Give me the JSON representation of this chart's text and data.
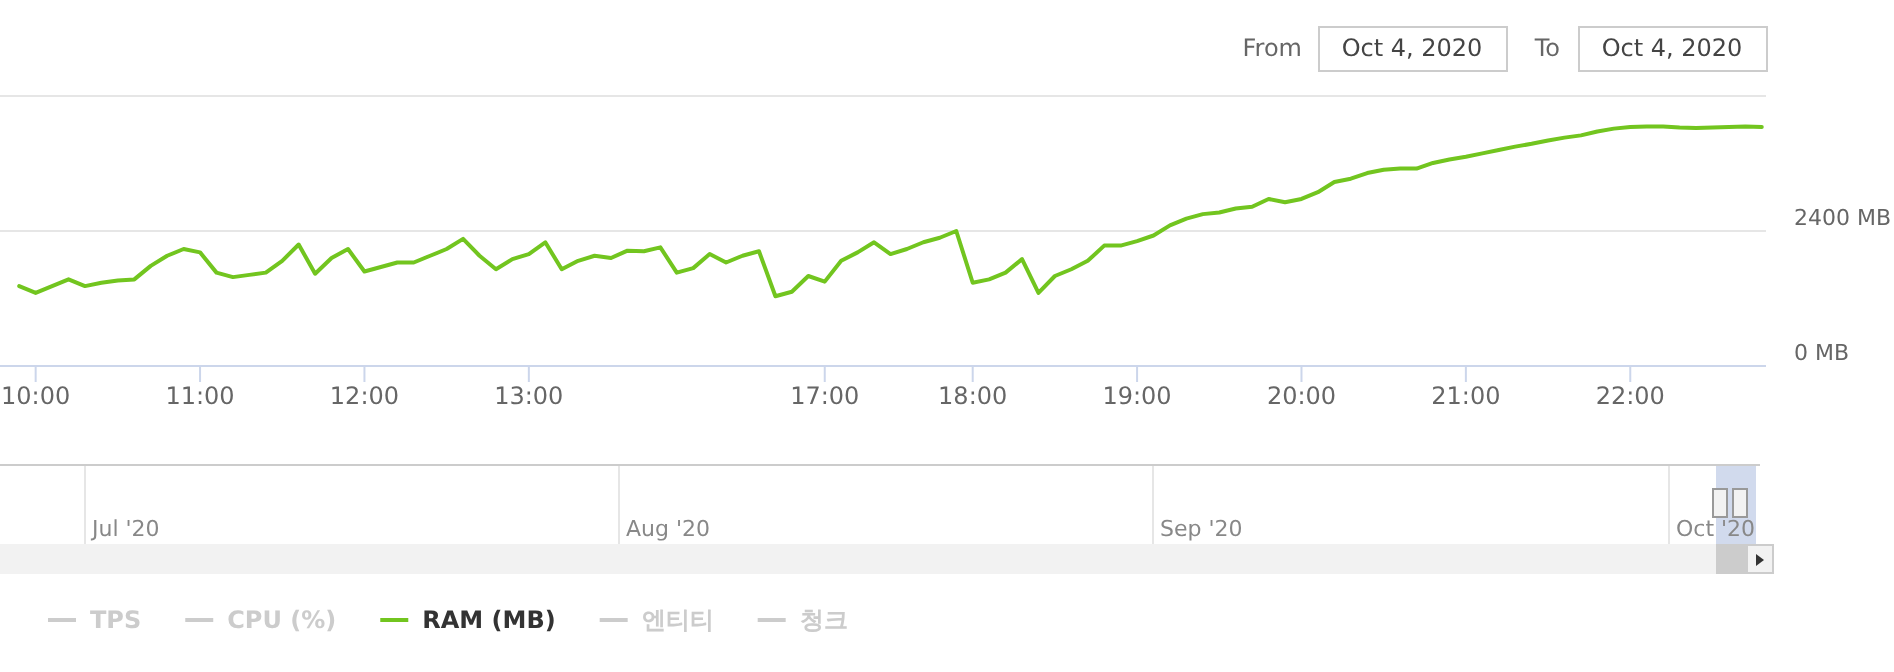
{
  "chart_data": {
    "type": "line",
    "categories": [
      null,
      "10:00",
      null,
      null,
      null,
      null,
      null,
      null,
      null,
      null,
      null,
      "11:00",
      null,
      null,
      null,
      null,
      null,
      null,
      null,
      null,
      null,
      "12:00",
      null,
      null,
      null,
      null,
      null,
      null,
      null,
      null,
      null,
      "13:00",
      null,
      null,
      null,
      null,
      null,
      null,
      null,
      null,
      null,
      null,
      null,
      null,
      null,
      null,
      null,
      null,
      null,
      "17:00",
      null,
      null,
      null,
      null,
      null,
      null,
      null,
      null,
      "18:00",
      null,
      null,
      null,
      null,
      null,
      null,
      null,
      null,
      null,
      "19:00",
      null,
      null,
      null,
      null,
      null,
      null,
      null,
      null,
      null,
      "20:00",
      null,
      null,
      null,
      null,
      null,
      null,
      null,
      null,
      null,
      "21:00",
      null,
      null,
      null,
      null,
      null,
      null,
      null,
      null,
      null,
      "22:00",
      null,
      null,
      null,
      null,
      null,
      null,
      null,
      null
    ],
    "series": [
      {
        "name": "TPS",
        "color": "#cccccc",
        "values": [
          null,
          null,
          null,
          null,
          null,
          null,
          null,
          null,
          null,
          null,
          null,
          null,
          null,
          null,
          null,
          null,
          null,
          null,
          null,
          null,
          null,
          null,
          null,
          null,
          null,
          null,
          null,
          null,
          null,
          null,
          null,
          null,
          null,
          null,
          null,
          null,
          null,
          null,
          null,
          null,
          null,
          null,
          null,
          null,
          null,
          null,
          null,
          null,
          null,
          null,
          null,
          null,
          null,
          null,
          null,
          null,
          null,
          null,
          null,
          null,
          null,
          null,
          null,
          null,
          null,
          null,
          null,
          null,
          null,
          null,
          null,
          null,
          null,
          null,
          null,
          null,
          null,
          null,
          null,
          null,
          null,
          null,
          null,
          null,
          null,
          null,
          null,
          null,
          null,
          null,
          null,
          null,
          null,
          null,
          null,
          null,
          null,
          null,
          null,
          null,
          null,
          null,
          null,
          null,
          null,
          null,
          null
        ]
      },
      {
        "name": "CPU (%)",
        "color": "#cccccc",
        "values": [
          null,
          null,
          null,
          null,
          null,
          null,
          null,
          null,
          null,
          null,
          null,
          null,
          null,
          null,
          null,
          null,
          null,
          null,
          null,
          null,
          null,
          null,
          null,
          null,
          null,
          null,
          null,
          null,
          null,
          null,
          null,
          null,
          null,
          null,
          null,
          null,
          null,
          null,
          null,
          null,
          null,
          null,
          null,
          null,
          null,
          null,
          null,
          null,
          null,
          null,
          null,
          null,
          null,
          null,
          null,
          null,
          null,
          null,
          null,
          null,
          null,
          null,
          null,
          null,
          null,
          null,
          null,
          null,
          null,
          null,
          null,
          null,
          null,
          null,
          null,
          null,
          null,
          null,
          null,
          null,
          null,
          null,
          null,
          null,
          null,
          null,
          null,
          null,
          null,
          null,
          null,
          null,
          null,
          null,
          null,
          null,
          null,
          null,
          null,
          null,
          null,
          null,
          null,
          null,
          null,
          null,
          null
        ]
      },
      {
        "name": "RAM (MB)",
        "color": "#72c51f",
        "values": [
          1420,
          1300,
          1420,
          1540,
          1420,
          1480,
          1520,
          1540,
          1780,
          1960,
          2080,
          2020,
          1660,
          1580,
          1620,
          1660,
          1870,
          2160,
          1640,
          1920,
          2080,
          1680,
          1760,
          1840,
          1840,
          1960,
          2080,
          2260,
          1960,
          1720,
          1900,
          1990,
          2200,
          1720,
          1870,
          1960,
          1920,
          2050,
          2040,
          2110,
          1660,
          1740,
          1990,
          1840,
          1960,
          2040,
          1240,
          1320,
          1600,
          1500,
          1870,
          2020,
          2200,
          1990,
          2080,
          2200,
          2280,
          2400,
          1480,
          1540,
          1660,
          1900,
          1300,
          1600,
          1720,
          1870,
          2140,
          2140,
          2220,
          2320,
          2500,
          2620,
          2700,
          2730,
          2800,
          2830,
          2970,
          2910,
          2970,
          3090,
          3270,
          3330,
          3430,
          3490,
          3510,
          3510,
          3610,
          3670,
          3720,
          3780,
          3840,
          3900,
          3950,
          4010,
          4060,
          4100,
          4170,
          4220,
          4250,
          4260,
          4260,
          4240,
          4230,
          4240,
          4250,
          4260,
          4250
        ]
      },
      {
        "name": "엔티티",
        "color": "#cccccc",
        "values": [
          null,
          null,
          null,
          null,
          null,
          null,
          null,
          null,
          null,
          null,
          null,
          null,
          null,
          null,
          null,
          null,
          null,
          null,
          null,
          null,
          null,
          null,
          null,
          null,
          null,
          null,
          null,
          null,
          null,
          null,
          null,
          null,
          null,
          null,
          null,
          null,
          null,
          null,
          null,
          null,
          null,
          null,
          null,
          null,
          null,
          null,
          null,
          null,
          null,
          null,
          null,
          null,
          null,
          null,
          null,
          null,
          null,
          null,
          null,
          null,
          null,
          null,
          null,
          null,
          null,
          null,
          null,
          null,
          null,
          null,
          null,
          null,
          null,
          null,
          null,
          null,
          null,
          null,
          null,
          null,
          null,
          null,
          null,
          null,
          null,
          null,
          null,
          null,
          null,
          null,
          null,
          null,
          null,
          null,
          null,
          null,
          null,
          null,
          null,
          null,
          null,
          null,
          null,
          null,
          null,
          null,
          null
        ]
      },
      {
        "name": "청크",
        "color": "#cccccc",
        "values": [
          null,
          null,
          null,
          null,
          null,
          null,
          null,
          null,
          null,
          null,
          null,
          null,
          null,
          null,
          null,
          null,
          null,
          null,
          null,
          null,
          null,
          null,
          null,
          null,
          null,
          null,
          null,
          null,
          null,
          null,
          null,
          null,
          null,
          null,
          null,
          null,
          null,
          null,
          null,
          null,
          null,
          null,
          null,
          null,
          null,
          null,
          null,
          null,
          null,
          null,
          null,
          null,
          null,
          null,
          null,
          null,
          null,
          null,
          null,
          null,
          null,
          null,
          null,
          null,
          null,
          null,
          null,
          null,
          null,
          null,
          null,
          null,
          null,
          null,
          null,
          null,
          null,
          null,
          null,
          null,
          null,
          null,
          null,
          null,
          null,
          null,
          null,
          null,
          null,
          null,
          null,
          null,
          null,
          null,
          null,
          null,
          null,
          null,
          null,
          null,
          null,
          null,
          null,
          null,
          null,
          null,
          null
        ]
      }
    ],
    "ylim": [
      0,
      4800
    ],
    "yticks": [
      {
        "value": 0,
        "label": "0 MB"
      },
      {
        "value": 2400,
        "label": "2400 MB"
      },
      {
        "value": 4800,
        "label": null
      }
    ],
    "grid": "y",
    "legend": "bottom",
    "marker": "none",
    "line_style": "solid",
    "annotations": [
      "From",
      "Oct 4, 2020",
      "To",
      "Oct 4, 2020",
      "Jul '20",
      "Aug '20",
      "Sep '20",
      "Oct '20"
    ]
  }
}
